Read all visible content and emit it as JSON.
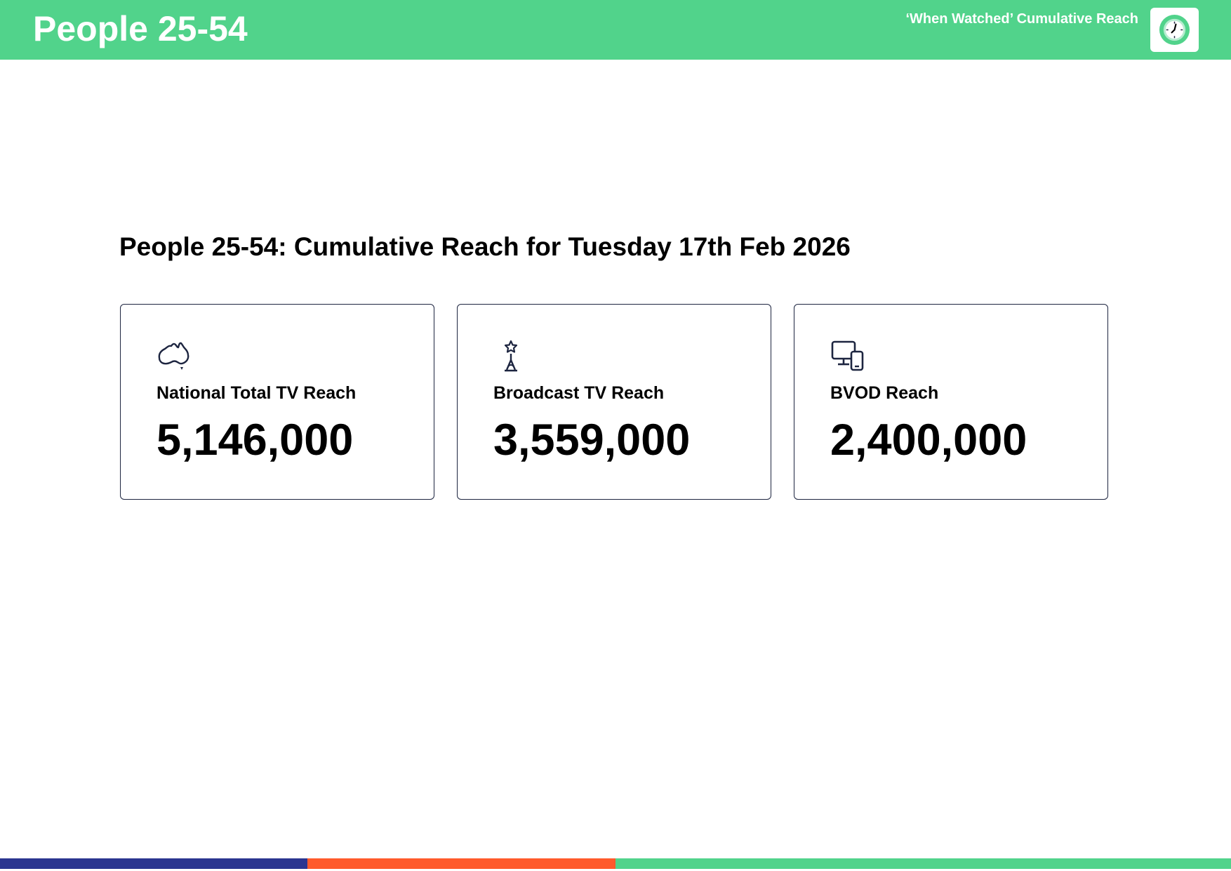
{
  "header": {
    "title": "People 25-54",
    "subtitle": "‘When Watched’ Cumulative Reach",
    "logo_icon": "clock-icon",
    "background_color": "#51d38b"
  },
  "main": {
    "heading": "People 25-54: Cumulative Reach for Tuesday 17th Feb 2026",
    "cards": [
      {
        "icon": "australia-map-icon",
        "label": "National Total TV Reach",
        "value": "5,146,000"
      },
      {
        "icon": "broadcast-tower-icon",
        "label": "Broadcast TV Reach",
        "value": "3,559,000"
      },
      {
        "icon": "devices-icon",
        "label": "BVOD Reach",
        "value": "2,400,000"
      }
    ]
  },
  "footer": {
    "colors": [
      "#2b3590",
      "#ff5a2c",
      "#51d38b"
    ]
  }
}
